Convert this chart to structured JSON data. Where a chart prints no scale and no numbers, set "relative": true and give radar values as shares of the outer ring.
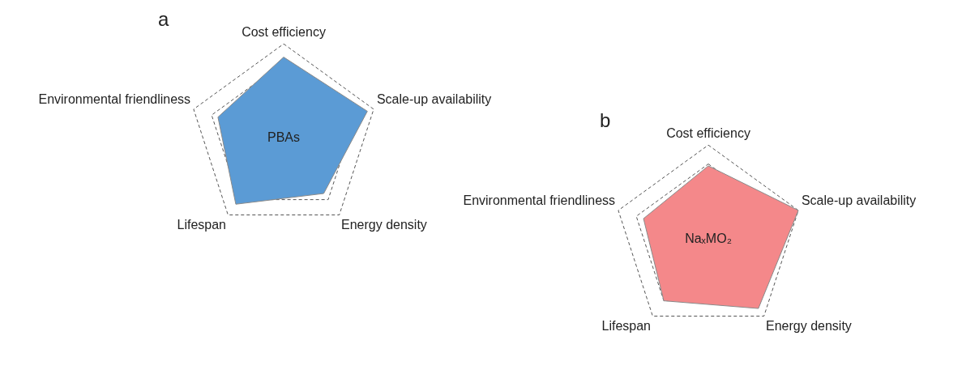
{
  "chart_data": [
    {
      "type": "radar",
      "title": "a",
      "relative": true,
      "categories": [
        "Cost efficiency",
        "Scale-up availability",
        "Energy density",
        "Lifespan",
        "Environmental friendliness"
      ],
      "series": [
        {
          "name": "PBAs",
          "color": "#5b9bd5",
          "values": [
            0.86,
            0.93,
            0.72,
            0.86,
            0.73
          ]
        }
      ],
      "grid": true,
      "line_style": "dashed",
      "marker": "none",
      "legend": false
    },
    {
      "type": "radar",
      "title": "b",
      "relative": true,
      "categories": [
        "Cost efficiency",
        "Scale-up availability",
        "Energy density",
        "Lifespan",
        "Environmental friendliness"
      ],
      "series": [
        {
          "name": "NaₓMO₂",
          "color": "#f4888a",
          "values": [
            0.78,
            1,
            0.9,
            0.8,
            0.72
          ]
        }
      ],
      "grid": true,
      "line_style": "dashed",
      "marker": "none",
      "legend": false
    }
  ]
}
